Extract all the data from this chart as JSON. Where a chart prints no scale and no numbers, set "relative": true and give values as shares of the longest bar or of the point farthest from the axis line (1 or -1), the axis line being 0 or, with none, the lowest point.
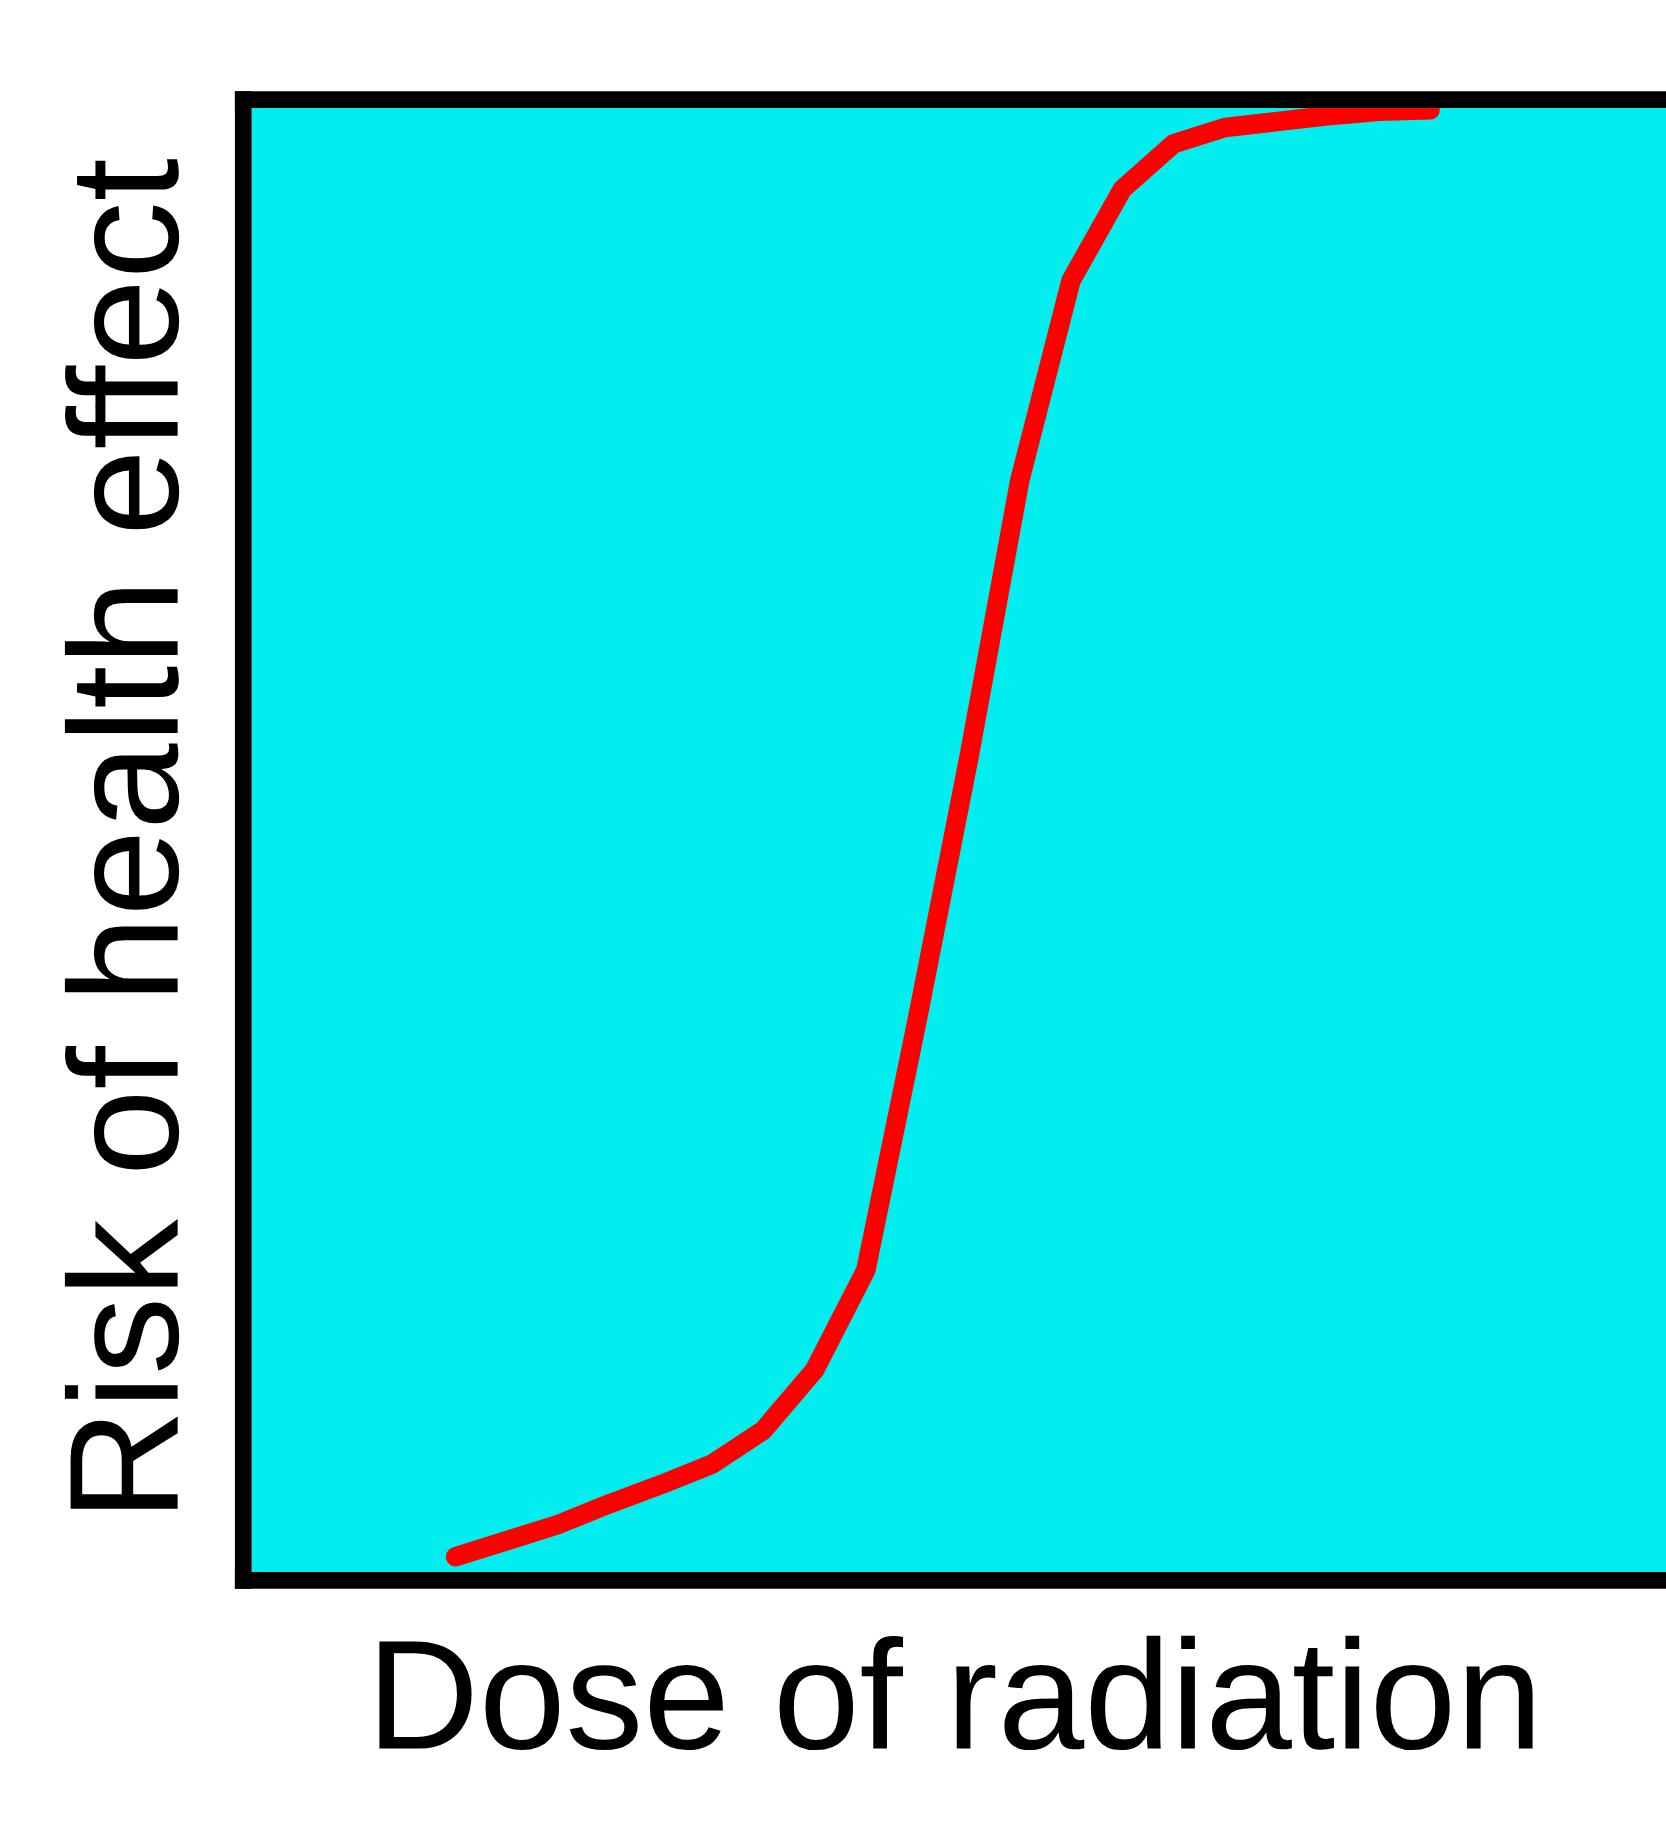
{
  "chart_data": {
    "type": "line",
    "relative": true,
    "xlabel": "Dose of radiation",
    "ylabel": "Risk of health effect",
    "categories": [
      null,
      null,
      null,
      null,
      null,
      null,
      null,
      null,
      null,
      null,
      null,
      null,
      null,
      null,
      null,
      null,
      null,
      null,
      null,
      null
    ],
    "series": [
      {
        "color": "#ff0000",
        "values": [
          0.016,
          0.027,
          0.038,
          0.052,
          0.065,
          0.079,
          0.102,
          0.143,
          0.211,
          0.381,
          0.558,
          0.748,
          0.884,
          0.946,
          0.977,
          0.988,
          0.992,
          0.996,
          0.999,
          1
        ]
      }
    ],
    "marker": "none",
    "line_style": "solid",
    "legend": false,
    "tick_labels": false
  }
}
